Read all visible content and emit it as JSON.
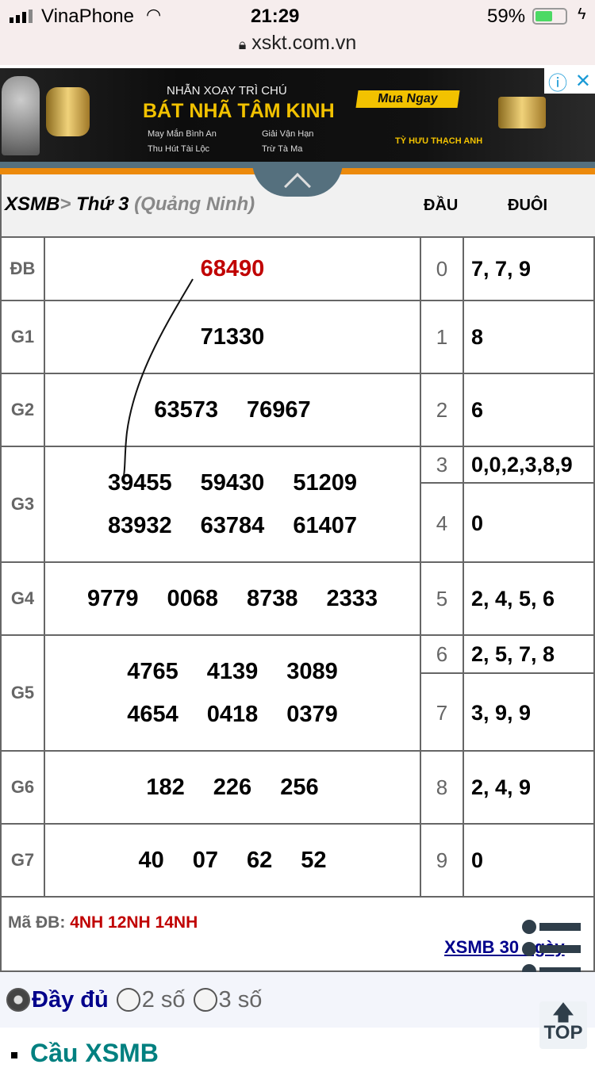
{
  "status_bar": {
    "carrier": "VinaPhone",
    "time": "21:29",
    "battery": "59%",
    "battery_level": 0.59
  },
  "url_bar": {
    "domain": "xskt.com.vn"
  },
  "ad": {
    "line1": "NHẪN XOAY TRÌ CHÚ",
    "line2": "BÁT NHÃ TÂM KINH",
    "features": [
      "May Mắn Bình An",
      "Giải Vận Hạn",
      "Thu Hút Tài Lộc",
      "Trừ Tà Ma"
    ],
    "cta": "Mua Ngay",
    "product": "TỲ HƯU THẠCH ANH"
  },
  "table": {
    "breadcrumb": {
      "root": "XSMB",
      "sep": ">",
      "day": "Thứ 3",
      "province": "(Quảng Ninh)"
    },
    "col_dau": "ĐẦU",
    "col_duoi": "ĐUÔI",
    "prizes": [
      {
        "label": "ĐB",
        "lines": [
          [
            "68490"
          ]
        ]
      },
      {
        "label": "G1",
        "lines": [
          [
            "71330"
          ]
        ]
      },
      {
        "label": "G2",
        "lines": [
          [
            "63573",
            "76967"
          ]
        ]
      },
      {
        "label": "G3",
        "lines": [
          [
            "39455",
            "59430",
            "51209"
          ],
          [
            "83932",
            "63784",
            "61407"
          ]
        ]
      },
      {
        "label": "G4",
        "lines": [
          [
            "9779",
            "0068",
            "8738",
            "2333"
          ]
        ]
      },
      {
        "label": "G5",
        "lines": [
          [
            "4765",
            "4139",
            "3089"
          ],
          [
            "4654",
            "0418",
            "0379"
          ]
        ]
      },
      {
        "label": "G6",
        "lines": [
          [
            "182",
            "226",
            "256"
          ]
        ]
      },
      {
        "label": "G7",
        "lines": [
          [
            "40",
            "07",
            "62",
            "52"
          ]
        ]
      }
    ],
    "loto": [
      {
        "dau": "0",
        "duoi": "7, 7, 9"
      },
      {
        "dau": "1",
        "duoi": "8"
      },
      {
        "dau": "2",
        "duoi": "6"
      },
      {
        "dau": "3",
        "duoi": "0,0,2,3,8,9"
      },
      {
        "dau": "4",
        "duoi": "0"
      },
      {
        "dau": "5",
        "duoi": "2, 4, 5, 6"
      },
      {
        "dau": "6",
        "duoi": "2, 5, 7, 8"
      },
      {
        "dau": "7",
        "duoi": "3, 9, 9"
      },
      {
        "dau": "8",
        "duoi": "2, 4, 9"
      },
      {
        "dau": "9",
        "duoi": "0"
      }
    ],
    "ma_db_label": "Mã ĐB:",
    "ma_db_value": "4NH 12NH 14NH",
    "link_30": "XSMB 30 ngày"
  },
  "display_options": [
    {
      "label": "Đầy đủ",
      "selected": true
    },
    {
      "label": "2 số",
      "selected": false
    },
    {
      "label": "3 số",
      "selected": false
    }
  ],
  "section_link": "Cầu XSMB",
  "top_button": "TOP",
  "colors": {
    "special": "#c00000",
    "link": "#00008b",
    "orange": "#ec8a0c",
    "slate": "#55707e",
    "teal": "#008080"
  }
}
